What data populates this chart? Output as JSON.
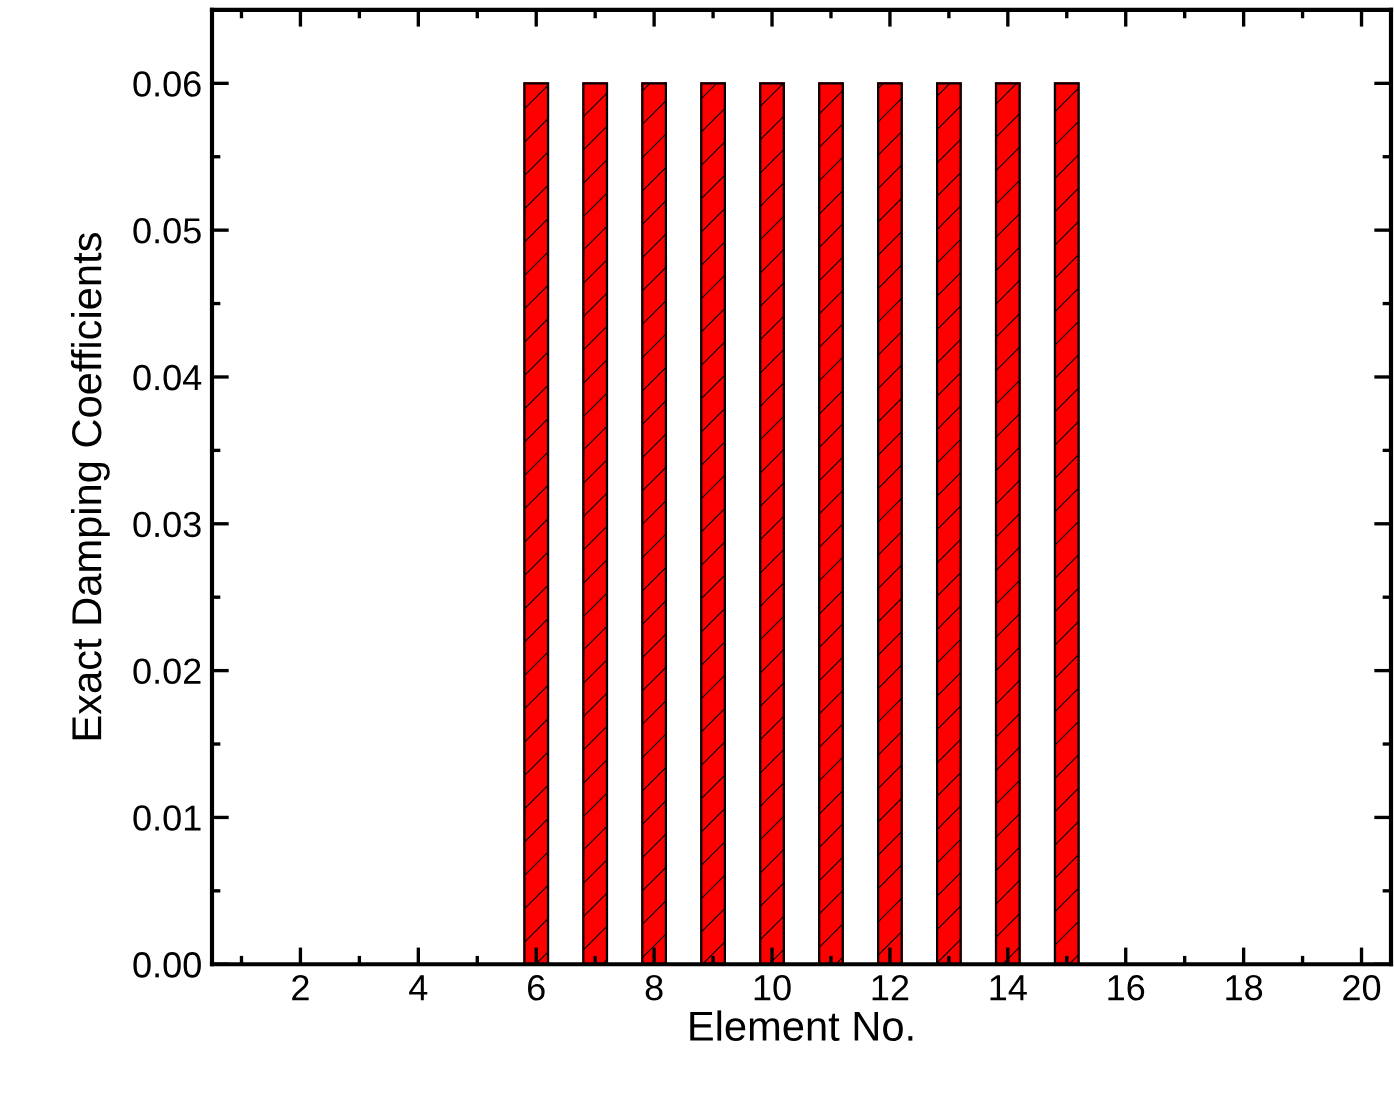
{
  "chart_data": {
    "type": "bar",
    "xlabel": "Element No.",
    "ylabel": "Exact Damping Coefficients",
    "x": [
      6,
      7,
      8,
      9,
      10,
      11,
      12,
      13,
      14,
      15
    ],
    "values": [
      0.06,
      0.06,
      0.06,
      0.06,
      0.06,
      0.06,
      0.06,
      0.06,
      0.06,
      0.06
    ],
    "color": "#ff0000",
    "xlim": [
      0.5,
      20.5
    ],
    "xticks": [
      2,
      4,
      6,
      8,
      10,
      12,
      14,
      16,
      18,
      20
    ],
    "ylim": [
      0,
      0.065
    ],
    "yticks": [
      {
        "value": 0,
        "label": "0.00"
      },
      {
        "value": 0.01,
        "label": "0.01"
      },
      {
        "value": 0.02,
        "label": "0.02"
      },
      {
        "value": 0.03,
        "label": "0.03"
      },
      {
        "value": 0.04,
        "label": "0.04"
      },
      {
        "value": 0.05,
        "label": "0.05"
      },
      {
        "value": 0.06,
        "label": "0.06"
      }
    ],
    "grid": false
  }
}
